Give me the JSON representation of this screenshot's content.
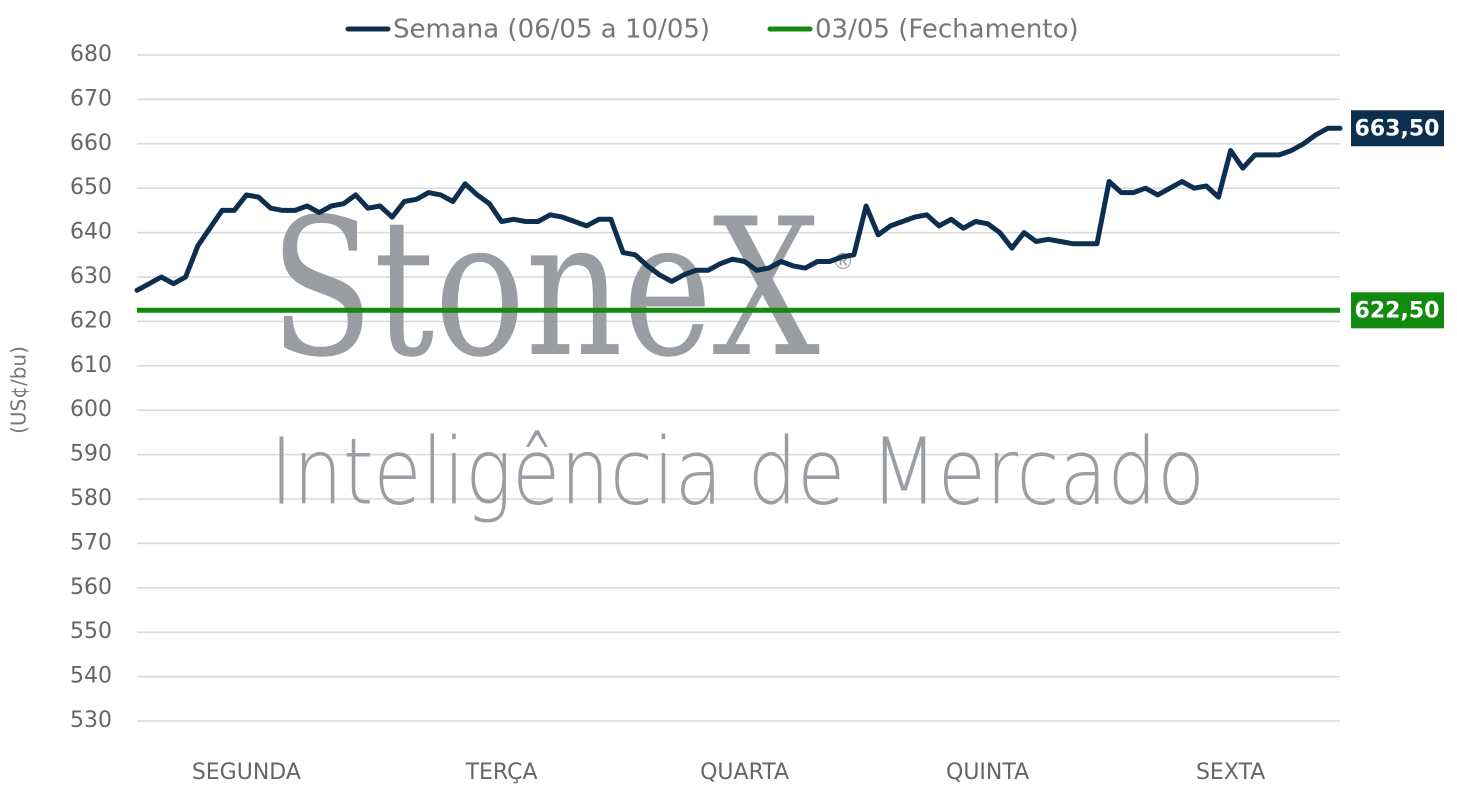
{
  "chart_data": {
    "type": "line",
    "y_axis_label": "(US¢/bu)",
    "watermark": {
      "brand": "StoneX",
      "mark": "®",
      "tagline": "Inteligência de Mercado"
    },
    "categories": [
      null,
      null,
      null,
      null,
      null,
      null,
      null,
      null,
      null,
      "SEGUNDA",
      null,
      null,
      null,
      null,
      null,
      null,
      null,
      null,
      null,
      null,
      null,
      null,
      null,
      null,
      null,
      null,
      null,
      null,
      null,
      null,
      "TERÇA",
      null,
      null,
      null,
      null,
      null,
      null,
      null,
      null,
      null,
      null,
      null,
      null,
      null,
      null,
      null,
      null,
      null,
      null,
      null,
      "QUARTA",
      null,
      null,
      null,
      null,
      null,
      null,
      null,
      null,
      null,
      null,
      null,
      null,
      null,
      null,
      null,
      null,
      null,
      null,
      null,
      "QUINTA",
      null,
      null,
      null,
      null,
      null,
      null,
      null,
      null,
      null,
      null,
      null,
      null,
      null,
      null,
      null,
      null,
      null,
      null,
      null,
      "SEXTA",
      null,
      null,
      null,
      null,
      null,
      null,
      null,
      null,
      null
    ],
    "series": [
      {
        "name": "Semana (06/05 a 10/05)",
        "color": "#0d2f4f",
        "last_label": "663,50",
        "values": [
          627,
          628.5,
          630,
          628.5,
          630,
          637,
          641,
          645,
          645,
          648.5,
          648,
          645.5,
          645,
          645,
          646,
          644.5,
          646,
          646.5,
          648.5,
          645.5,
          646,
          643.5,
          647,
          647.5,
          649,
          648.5,
          647,
          651,
          648.5,
          646.5,
          642.5,
          643,
          642.5,
          642.5,
          644,
          643.5,
          642.5,
          641.5,
          643,
          643,
          635.5,
          635,
          632.5,
          630.5,
          629,
          630.5,
          631.5,
          631.5,
          633,
          634,
          633.5,
          631.5,
          632,
          633.5,
          632.5,
          632,
          633.5,
          633.5,
          634.5,
          635,
          646,
          639.5,
          641.5,
          642.5,
          643.5,
          644,
          641.5,
          643,
          641,
          642.5,
          642,
          640,
          636.5,
          640,
          638,
          638.5,
          638,
          637.5,
          637.5,
          637.5,
          651.5,
          649,
          649,
          650,
          648.5,
          650,
          651.5,
          650,
          650.5,
          648,
          658.5,
          654.5,
          657.5,
          657.5,
          657.5,
          658.5,
          660,
          662,
          663.5,
          663.5
        ]
      }
    ],
    "reference_lines": [
      {
        "name": "03/05 (Fechamento)",
        "color": "#118a0f",
        "value": 622.5,
        "label": "622,50"
      }
    ],
    "ylim": [
      530,
      680
    ],
    "yticks": [
      530,
      540,
      550,
      560,
      570,
      580,
      590,
      600,
      610,
      620,
      630,
      640,
      650,
      660,
      670,
      680
    ],
    "grid": true
  }
}
